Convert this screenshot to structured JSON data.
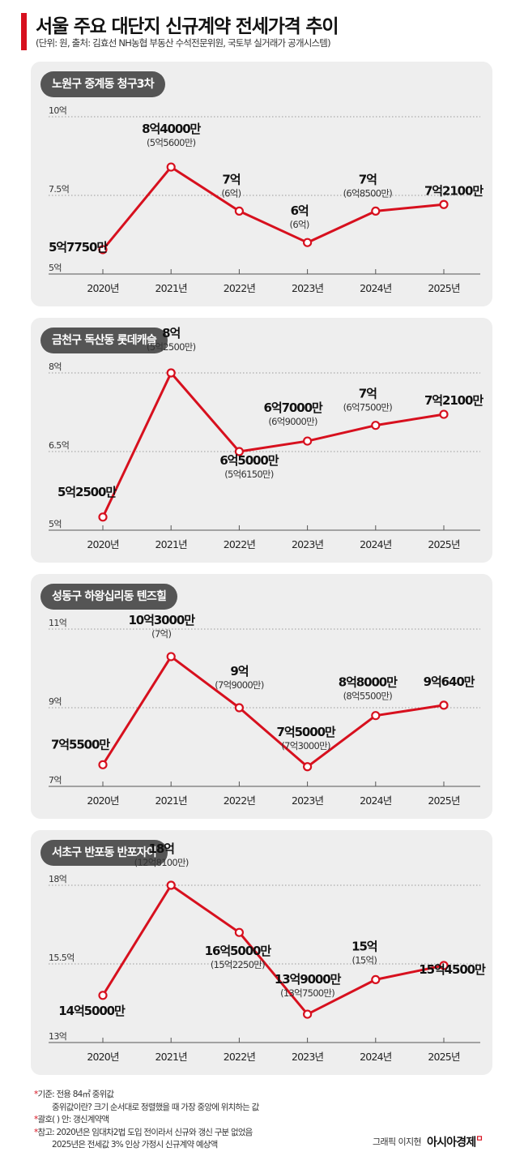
{
  "header": {
    "title": "서울 주요 대단지 신규계약 전세가격 추이",
    "subtitle": "(단위: 원, 출처: 김효선 NH농협 부동산 수석전문위원, 국토부 실거래가 공개시스템)"
  },
  "chart_data": [
    {
      "type": "line",
      "title": "노원구 중계동 청구3차",
      "categories": [
        "2020년",
        "2021년",
        "2022년",
        "2023년",
        "2024년",
        "2025년"
      ],
      "values": [
        5.775,
        8.4,
        7.0,
        6.0,
        7.0,
        7.21
      ],
      "ylim": [
        5,
        10
      ],
      "yticks": [
        "10억",
        "7.5억",
        "5억"
      ],
      "yticks_values": [
        10,
        7.5,
        5
      ],
      "value_labels": [
        "5억7750만",
        "8억4000만",
        "7억",
        "6억",
        "7억",
        "7억2100만"
      ],
      "renewal_labels": [
        "",
        "(5억5600만)",
        "(6억)",
        "(6억)",
        "(6억8500만)",
        ""
      ],
      "line_color": "#d7101e"
    },
    {
      "type": "line",
      "title": "금천구 독산동 롯데캐슬",
      "categories": [
        "2020년",
        "2021년",
        "2022년",
        "2023년",
        "2024년",
        "2025년"
      ],
      "values": [
        5.25,
        8.0,
        6.5,
        6.7,
        7.0,
        7.21
      ],
      "ylim": [
        5,
        8
      ],
      "yticks": [
        "8억",
        "6.5억",
        "5억"
      ],
      "yticks_values": [
        8,
        6.5,
        5
      ],
      "value_labels": [
        "5억2500만",
        "8억",
        "6억5000만",
        "6억7000만",
        "7억",
        "7억2100만"
      ],
      "renewal_labels": [
        "",
        "(5억2500만)",
        "(5억6150만)",
        "(6억9000만)",
        "(6억7500만)",
        ""
      ],
      "line_color": "#d7101e"
    },
    {
      "type": "line",
      "title": "성동구 하왕십리동 텐즈힐",
      "categories": [
        "2020년",
        "2021년",
        "2022년",
        "2023년",
        "2024년",
        "2025년"
      ],
      "values": [
        7.55,
        10.3,
        9.0,
        7.5,
        8.8,
        9.064
      ],
      "ylim": [
        7,
        11
      ],
      "yticks": [
        "11억",
        "9억",
        "7억"
      ],
      "yticks_values": [
        11,
        9,
        7
      ],
      "value_labels": [
        "7억5500만",
        "10억3000만",
        "9억",
        "7억5000만",
        "8억8000만",
        "9억640만"
      ],
      "renewal_labels": [
        "",
        "(7억)",
        "(7억9000만)",
        "(7억3000만)",
        "(8억5500만)",
        ""
      ],
      "line_color": "#d7101e"
    },
    {
      "type": "line",
      "title": "서초구 반포동 반포자이",
      "categories": [
        "2020년",
        "2021년",
        "2022년",
        "2023년",
        "2024년",
        "2025년"
      ],
      "values": [
        14.5,
        18.0,
        16.5,
        13.9,
        15.0,
        15.45
      ],
      "ylim": [
        13,
        18
      ],
      "yticks": [
        "18억",
        "15.5억",
        "13억"
      ],
      "yticks_values": [
        18,
        15.5,
        13
      ],
      "value_labels": [
        "14억5000만",
        "18억",
        "16억5000만",
        "13억9000만",
        "15억",
        "15억4500만"
      ],
      "renewal_labels": [
        "",
        "(12억8100만)",
        "(15억2250만)",
        "(13억7500만)",
        "(15억)",
        ""
      ],
      "line_color": "#d7101e"
    }
  ],
  "footnotes": {
    "items": [
      {
        "star": "*",
        "text": "기준: 전용 84㎡ 중위값"
      },
      {
        "star": "",
        "text": "중위값이란? 크기 순서대로 정렬했을 때 가장 중앙에 위치하는 값"
      },
      {
        "star": "*",
        "text": "괄호( ) 안: 갱신계약액"
      },
      {
        "star": "*",
        "text": "참고: 2020년은 임대차2법 도입 전이라서 신규와 갱신 구분 없었음"
      },
      {
        "star": "",
        "text": "2025년은 전세값 3% 인상 가정시 신규계약 예상액"
      }
    ]
  },
  "credit": "그래픽 이지현",
  "brand": "아시아경제",
  "brand_mark": "ㅁ"
}
